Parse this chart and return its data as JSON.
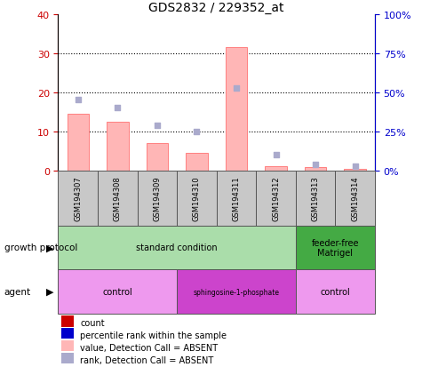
{
  "title": "GDS2832 / 229352_at",
  "samples": [
    "GSM194307",
    "GSM194308",
    "GSM194309",
    "GSM194310",
    "GSM194311",
    "GSM194312",
    "GSM194313",
    "GSM194314"
  ],
  "bar_values": [
    14.5,
    12.5,
    7.0,
    4.5,
    31.5,
    1.0,
    0.8,
    0.4
  ],
  "rank_dots_left_scale": [
    18.0,
    16.0,
    11.5,
    10.0,
    21.0,
    4.0,
    1.5,
    1.0
  ],
  "left_ylim": [
    0,
    40
  ],
  "right_ylim": [
    0,
    100
  ],
  "left_yticks": [
    0,
    10,
    20,
    30,
    40
  ],
  "right_yticks": [
    0,
    25,
    50,
    75,
    100
  ],
  "right_yticklabels": [
    "0%",
    "25%",
    "50%",
    "75%",
    "100%"
  ],
  "bar_color": "#FFB6B6",
  "bar_edge_color": "#FF8080",
  "dot_color": "#AAAACC",
  "left_tick_color": "#CC0000",
  "right_tick_color": "#0000CC",
  "sample_bg_color": "#C8C8C8",
  "growth_protocol_groups": [
    {
      "label": "standard condition",
      "start": 0,
      "end": 5,
      "color": "#AADDAA"
    },
    {
      "label": "feeder-free\nMatrigel",
      "start": 6,
      "end": 7,
      "color": "#44AA44"
    }
  ],
  "agent_groups": [
    {
      "label": "control",
      "start": 0,
      "end": 2,
      "color": "#EE99EE"
    },
    {
      "label": "sphingosine-1-phosphate",
      "start": 3,
      "end": 5,
      "color": "#CC44CC"
    },
    {
      "label": "control",
      "start": 6,
      "end": 7,
      "color": "#EE99EE"
    }
  ],
  "legend_items": [
    {
      "color": "#CC0000",
      "label": "count"
    },
    {
      "color": "#0000CC",
      "label": "percentile rank within the sample"
    },
    {
      "color": "#FFB6B6",
      "label": "value, Detection Call = ABSENT"
    },
    {
      "color": "#AAAACC",
      "label": "rank, Detection Call = ABSENT"
    }
  ]
}
